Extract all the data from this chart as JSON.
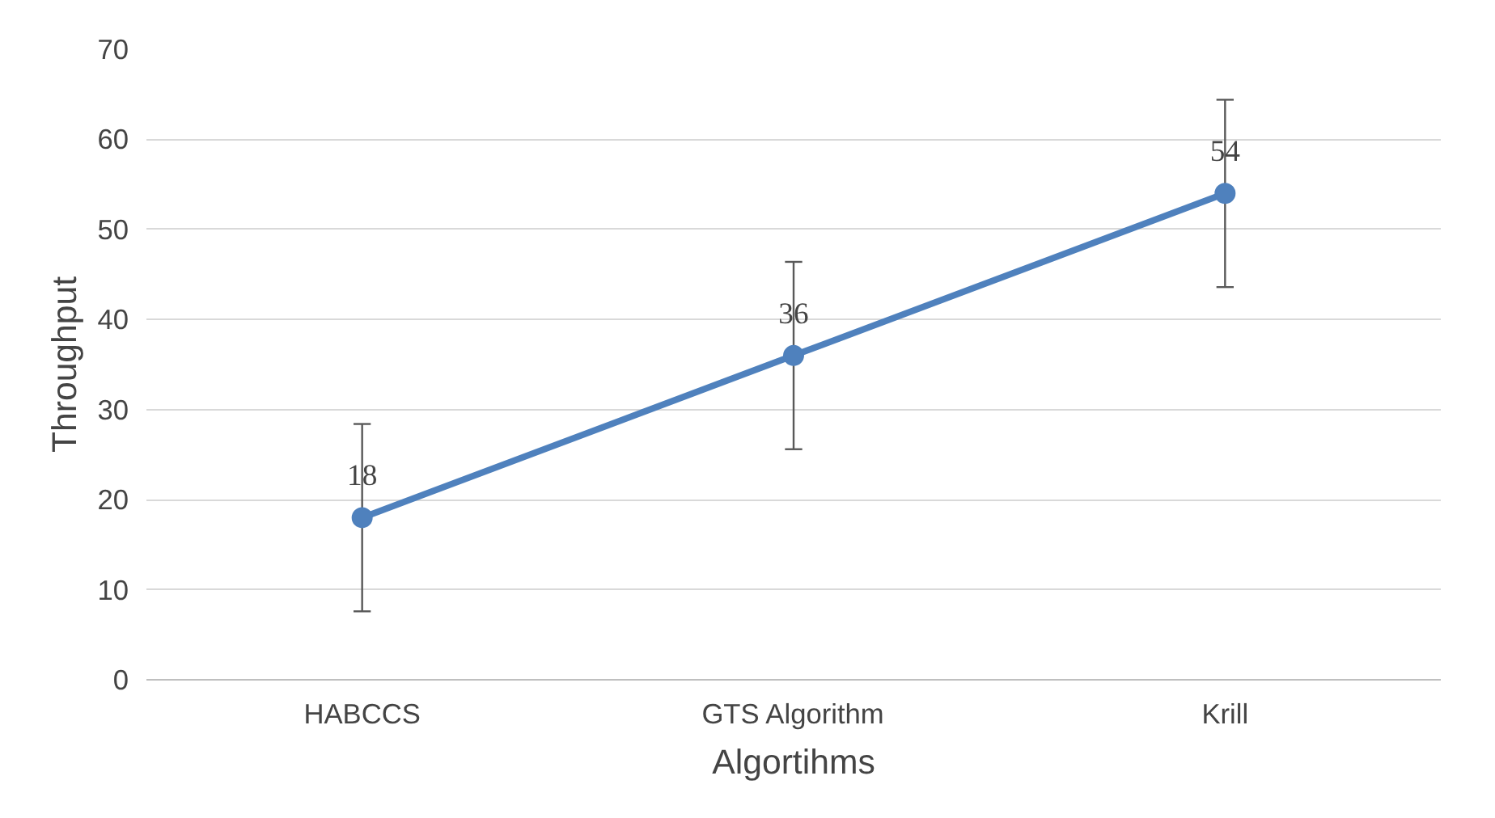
{
  "chart_data": {
    "type": "line",
    "xlabel": "Algortihms",
    "ylabel": "Throughput",
    "categories": [
      "HABCCS",
      "GTS Algorithm",
      "Krill"
    ],
    "series": [
      {
        "color": "#4f81bd",
        "values": [
          18,
          36,
          54
        ],
        "errors": [
          10.4,
          10.4,
          10.4
        ]
      }
    ],
    "ylim": [
      0,
      70
    ],
    "yticks": [
      0,
      10,
      20,
      30,
      40,
      50,
      60,
      70
    ],
    "grid": "y",
    "marker": "circle",
    "line_style": "solid",
    "data_labels": true
  }
}
